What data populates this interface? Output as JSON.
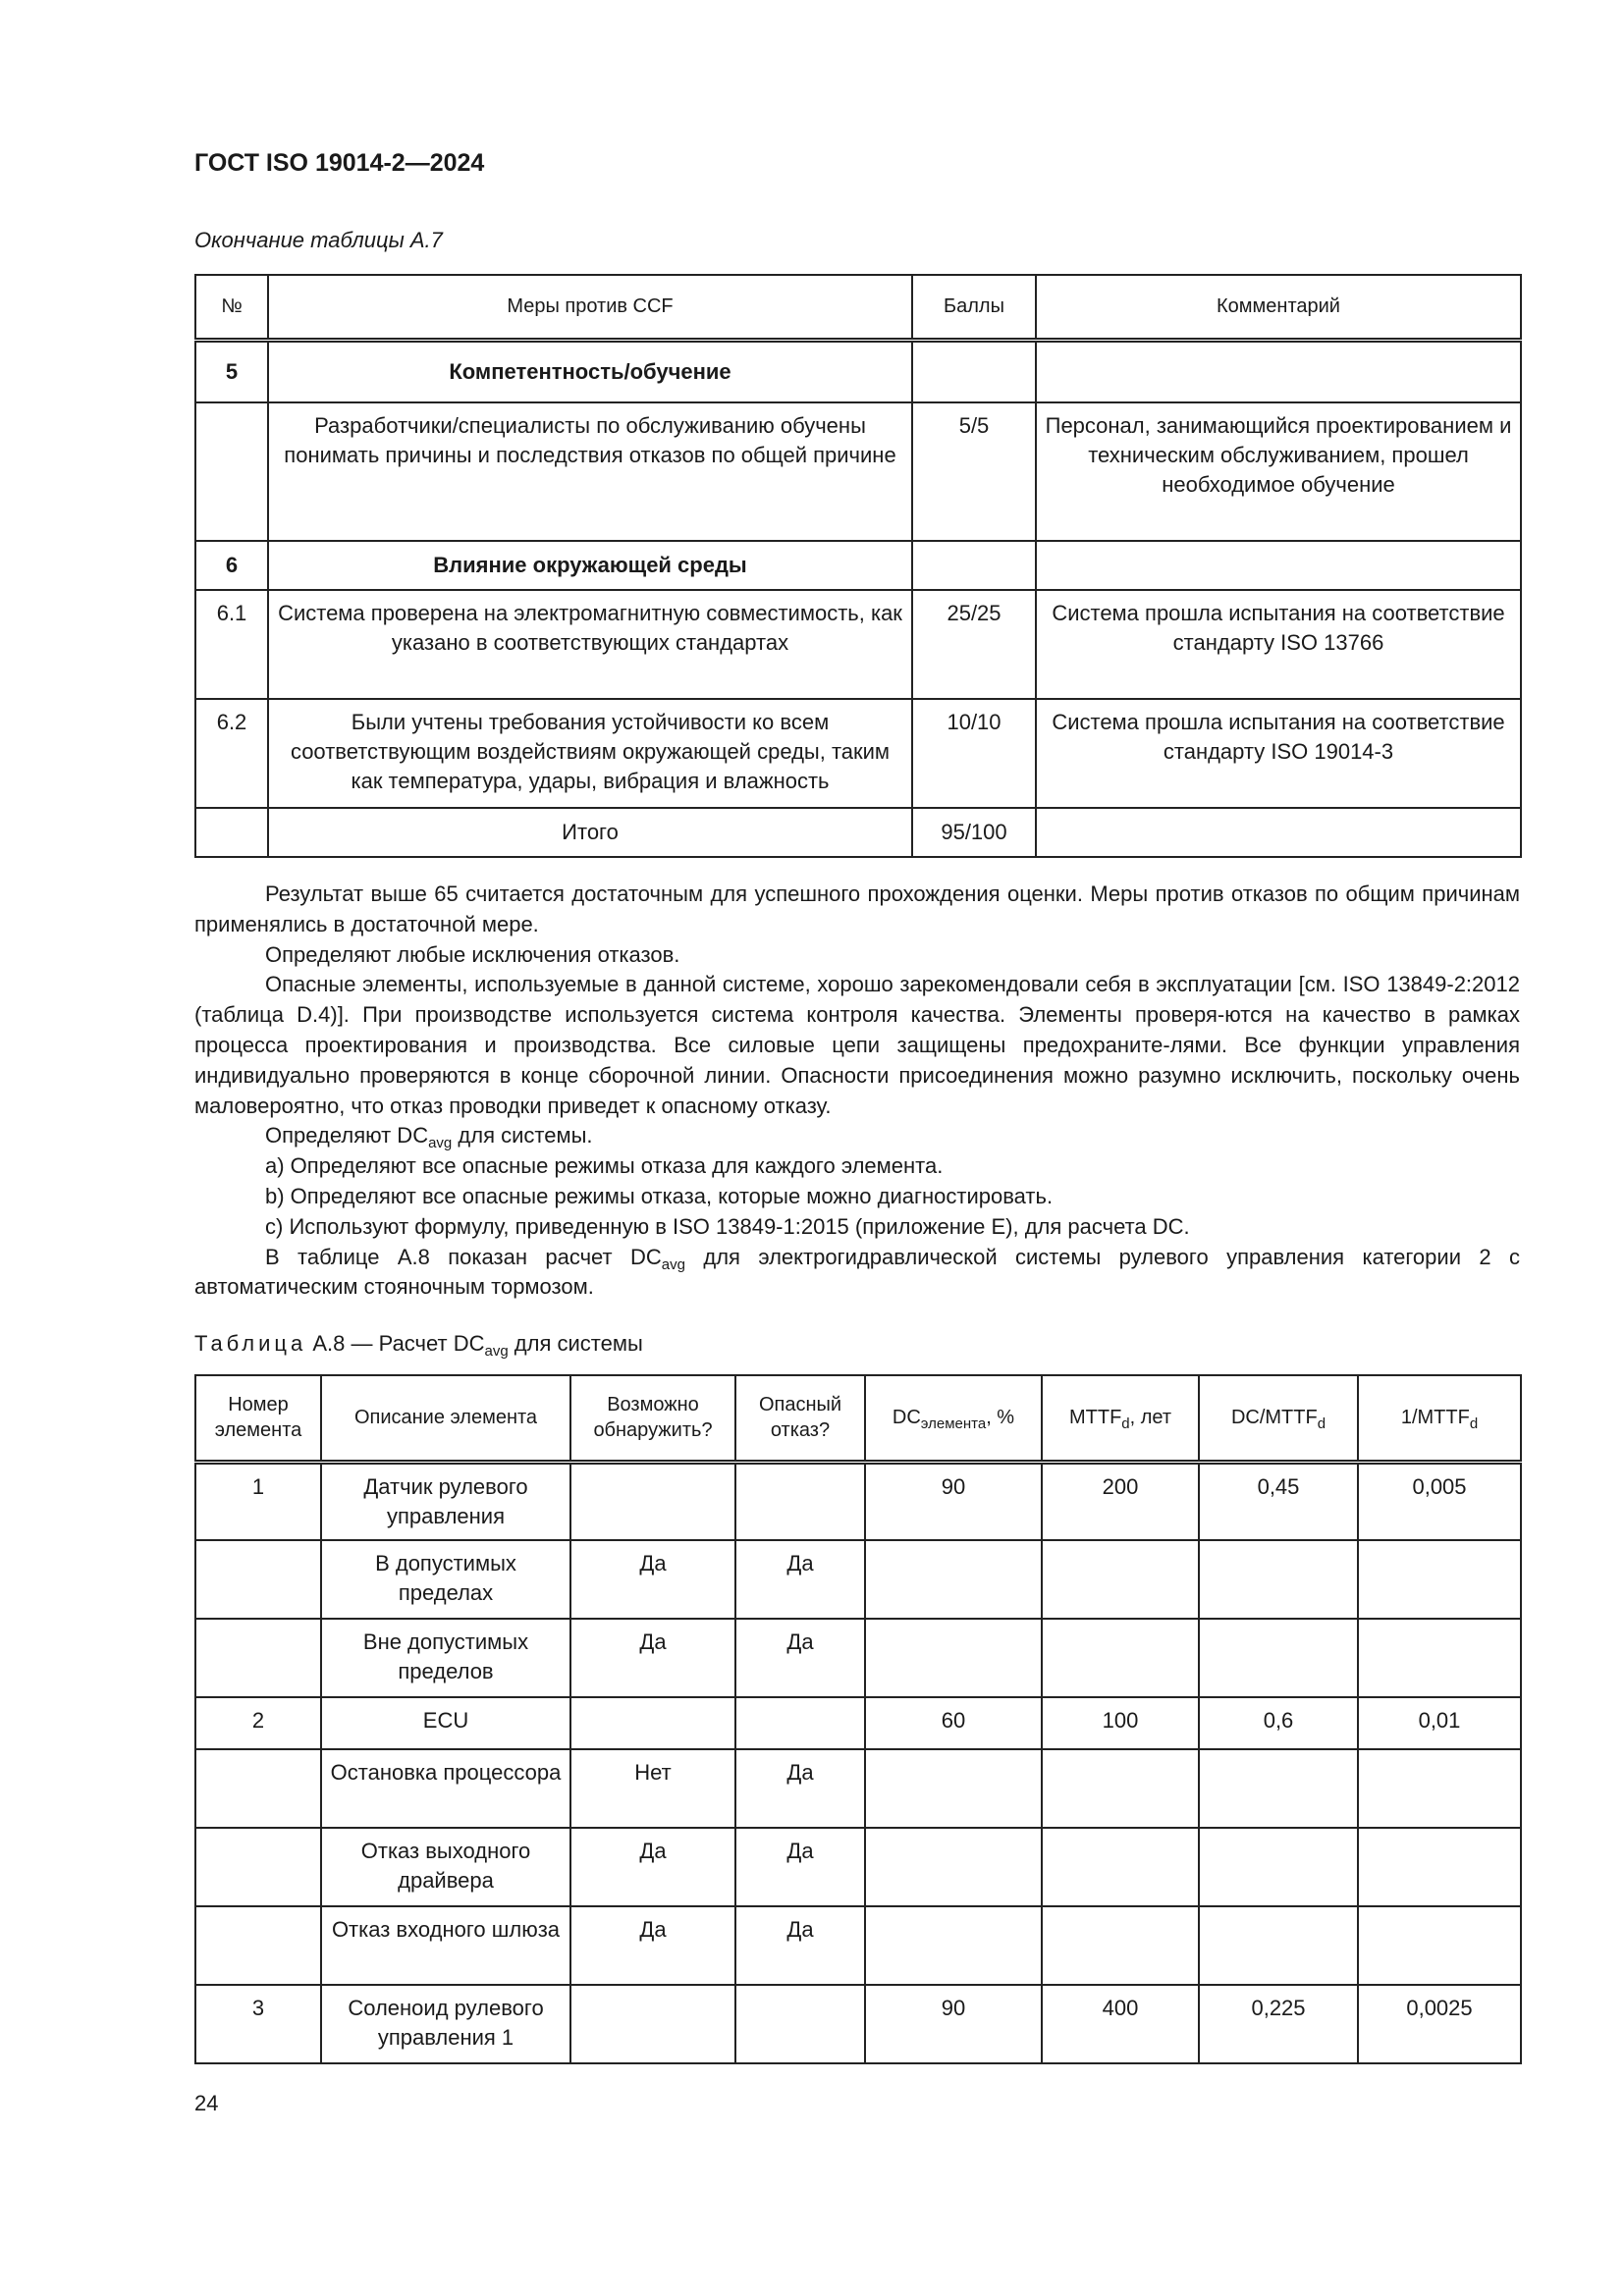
{
  "header": {
    "doc_id": "ГОСТ ISO 19014-2—2024"
  },
  "table_a7": {
    "continuation_label": "Окончание таблицы А.7",
    "columns": [
      "№",
      "Меры против CCF",
      "Баллы",
      "Комментарий"
    ],
    "rows": [
      {
        "num": "5",
        "measure": "Компетентность/обучение",
        "score": "",
        "comment": "",
        "section": true
      },
      {
        "num": "",
        "measure": "Разработчики/специалисты по обслуживанию обучены понимать причины и последствия отказов по общей причине",
        "score": "5/5",
        "comment": "Персонал, занимающийся проектированием и техническим обслуживанием, прошел необходимое обучение"
      },
      {
        "num": "6",
        "measure": "Влияние окружающей среды",
        "score": "",
        "comment": "",
        "section": true
      },
      {
        "num": "6.1",
        "measure": "Система проверена на электромагнитную совместимость, как указано в соответствующих стандартах",
        "score": "25/25",
        "comment": "Система прошла испытания на соответствие стандарту ISO 13766"
      },
      {
        "num": "6.2",
        "measure": "Были учтены требования устойчивости ко всем соответствующим воздействиям окружающей среды, таким как температура, удары, вибрация и влажность",
        "score": "10/10",
        "comment": "Система прошла испытания на соответствие стандарту ISO 19014-3"
      }
    ],
    "total": {
      "label": "Итого",
      "score": "95/100"
    }
  },
  "body": {
    "p1": "Результат выше 65 считается достаточным для успешного прохождения оценки. Меры против отказов по общим причинам применялись в достаточной мере.",
    "p2": "Определяют любые исключения отказов.",
    "p3": "Опасные элементы, используемые в данной системе, хорошо зарекомендовали себя в эксплуатации [см. ISO 13849-2:2012 (таблица D.4)]. При производстве используется система контроля качества. Элементы проверя-ются на качество в рамках процесса проектирования и производства. Все силовые цепи защищены предохраните-лями. Все функции управления индивидуально проверяются в конце сборочной линии. Опасности присоединения можно разумно исключить, поскольку очень маловероятно, что отказ проводки приведет к опасному отказу.",
    "p4_pre": "Определяют DC",
    "p4_sub": "avg",
    "p4_post": " для системы.",
    "item_a": "a) Определяют все опасные режимы отказа для каждого элемента.",
    "item_b": "b) Определяют все опасные режимы отказа, которые можно диагностировать.",
    "item_c": "c) Используют формулу, приведенную в ISO 13849-1:2015 (приложение Е), для расчета DC.",
    "p5_pre": "В таблице А.8 показан расчет DC",
    "p5_sub": "avg",
    "p5_post": " для электрогидравлической системы рулевого управления категории 2 с автоматическим стояночным тормозом."
  },
  "table_a8": {
    "caption_word": "Таблица",
    "caption_rest": " А.8 — Расчет DC",
    "caption_sub": "avg",
    "caption_end": " для системы",
    "columns": {
      "num": "Номер элемента",
      "desc": "Описание элемента",
      "detect": "Возможно обнаружить?",
      "danger": "Опасный отказ?",
      "dc_pre": "DC",
      "dc_sub": "элемента",
      "dc_post": ", %",
      "mttf_pre": "MTTF",
      "mttf_sub": "d",
      "mttf_post": ", лет",
      "dcm_pre": "DC/MTTF",
      "dcm_sub": "d",
      "inv_pre": "1/MTTF",
      "inv_sub": "d"
    },
    "rows": [
      {
        "num": "1",
        "desc": "Датчик рулевого управления",
        "detect": "",
        "danger": "",
        "dc": "90",
        "mttf": "200",
        "dcm": "0,45",
        "inv": "0,005"
      },
      {
        "num": "",
        "desc": "В допустимых пределах",
        "detect": "Да",
        "danger": "Да",
        "dc": "",
        "mttf": "",
        "dcm": "",
        "inv": ""
      },
      {
        "num": "",
        "desc": "Вне допустимых пределов",
        "detect": "Да",
        "danger": "Да",
        "dc": "",
        "mttf": "",
        "dcm": "",
        "inv": ""
      },
      {
        "num": "2",
        "desc": "ECU",
        "detect": "",
        "danger": "",
        "dc": "60",
        "mttf": "100",
        "dcm": "0,6",
        "inv": "0,01"
      },
      {
        "num": "",
        "desc": "Остановка процессора",
        "detect": "Нет",
        "danger": "Да",
        "dc": "",
        "mttf": "",
        "dcm": "",
        "inv": ""
      },
      {
        "num": "",
        "desc": "Отказ выходного драйвера",
        "detect": "Да",
        "danger": "Да",
        "dc": "",
        "mttf": "",
        "dcm": "",
        "inv": ""
      },
      {
        "num": "",
        "desc": "Отказ входного шлюза",
        "detect": "Да",
        "danger": "Да",
        "dc": "",
        "mttf": "",
        "dcm": "",
        "inv": ""
      },
      {
        "num": "3",
        "desc": "Соленоид рулевого управления 1",
        "detect": "",
        "danger": "",
        "dc": "90",
        "mttf": "400",
        "dcm": "0,225",
        "inv": "0,0025"
      }
    ]
  },
  "footer": {
    "page_number": "24"
  }
}
